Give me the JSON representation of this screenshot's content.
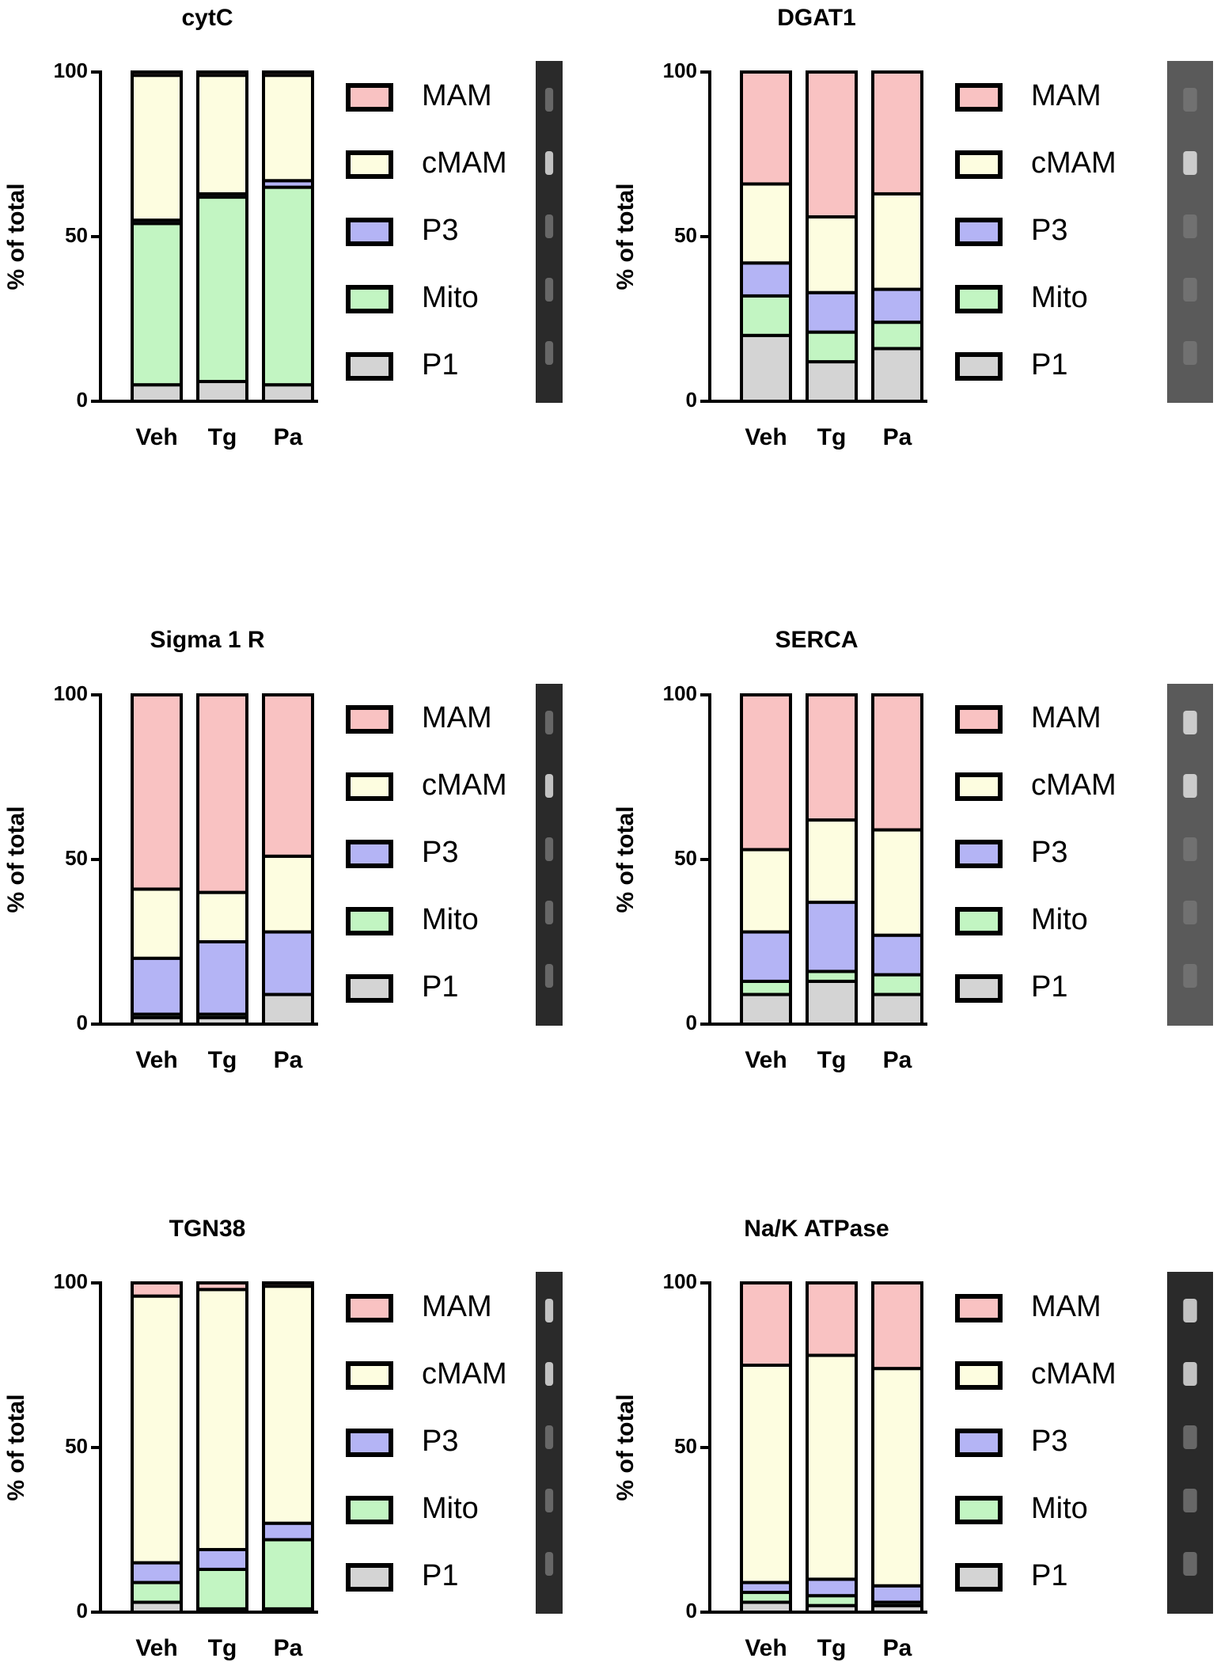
{
  "chart_data": [
    {
      "type": "bar",
      "stacked": true,
      "title": "cytC",
      "ylabel": "% of total",
      "categories": [
        "Veh",
        "Tg",
        "Pa"
      ],
      "ylim": [
        0,
        100
      ],
      "yticks": [
        0,
        50,
        100
      ],
      "series": [
        {
          "name": "P1",
          "color": "#d4d4d4",
          "values": [
            5,
            6,
            5
          ]
        },
        {
          "name": "Mito",
          "color": "#c2f5c2",
          "values": [
            49,
            56,
            60
          ]
        },
        {
          "name": "P3",
          "color": "#b4b4f5",
          "values": [
            1,
            1,
            2
          ]
        },
        {
          "name": "cMAM",
          "color": "#fdfde0",
          "values": [
            44,
            36,
            32
          ]
        },
        {
          "name": "MAM",
          "color": "#f9c2c2",
          "values": [
            1,
            1,
            1
          ]
        }
      ]
    },
    {
      "type": "bar",
      "stacked": true,
      "title": "DGAT1",
      "ylabel": "% of total",
      "categories": [
        "Veh",
        "Tg",
        "Pa"
      ],
      "ylim": [
        0,
        100
      ],
      "yticks": [
        0,
        50,
        100
      ],
      "series": [
        {
          "name": "P1",
          "color": "#d4d4d4",
          "values": [
            20,
            12,
            16
          ]
        },
        {
          "name": "Mito",
          "color": "#c2f5c2",
          "values": [
            12,
            9,
            8
          ]
        },
        {
          "name": "P3",
          "color": "#b4b4f5",
          "values": [
            10,
            12,
            10
          ]
        },
        {
          "name": "cMAM",
          "color": "#fdfde0",
          "values": [
            24,
            23,
            29
          ]
        },
        {
          "name": "MAM",
          "color": "#f9c2c2",
          "values": [
            34,
            44,
            37
          ]
        }
      ]
    },
    {
      "type": "bar",
      "stacked": true,
      "title": "Sigma 1 R",
      "ylabel": "% of total",
      "categories": [
        "Veh",
        "Tg",
        "Pa"
      ],
      "ylim": [
        0,
        100
      ],
      "yticks": [
        0,
        50,
        100
      ],
      "series": [
        {
          "name": "P1",
          "color": "#d4d4d4",
          "values": [
            2,
            2,
            9
          ]
        },
        {
          "name": "Mito",
          "color": "#c2f5c2",
          "values": [
            1,
            1,
            0
          ]
        },
        {
          "name": "P3",
          "color": "#b4b4f5",
          "values": [
            17,
            22,
            19
          ]
        },
        {
          "name": "cMAM",
          "color": "#fdfde0",
          "values": [
            21,
            15,
            23
          ]
        },
        {
          "name": "MAM",
          "color": "#f9c2c2",
          "values": [
            59,
            60,
            49
          ]
        }
      ]
    },
    {
      "type": "bar",
      "stacked": true,
      "title": "SERCA",
      "ylabel": "% of total",
      "categories": [
        "Veh",
        "Tg",
        "Pa"
      ],
      "ylim": [
        0,
        100
      ],
      "yticks": [
        0,
        50,
        100
      ],
      "series": [
        {
          "name": "P1",
          "color": "#d4d4d4",
          "values": [
            9,
            13,
            9
          ]
        },
        {
          "name": "Mito",
          "color": "#c2f5c2",
          "values": [
            4,
            3,
            6
          ]
        },
        {
          "name": "P3",
          "color": "#b4b4f5",
          "values": [
            15,
            21,
            12
          ]
        },
        {
          "name": "cMAM",
          "color": "#fdfde0",
          "values": [
            25,
            25,
            32
          ]
        },
        {
          "name": "MAM",
          "color": "#f9c2c2",
          "values": [
            47,
            38,
            41
          ]
        }
      ]
    },
    {
      "type": "bar",
      "stacked": true,
      "title": "TGN38",
      "ylabel": "% of total",
      "categories": [
        "Veh",
        "Tg",
        "Pa"
      ],
      "ylim": [
        0,
        100
      ],
      "yticks": [
        0,
        50,
        100
      ],
      "series": [
        {
          "name": "P1",
          "color": "#d4d4d4",
          "values": [
            3,
            1,
            1
          ]
        },
        {
          "name": "Mito",
          "color": "#c2f5c2",
          "values": [
            6,
            12,
            21
          ]
        },
        {
          "name": "P3",
          "color": "#b4b4f5",
          "values": [
            6,
            6,
            5
          ]
        },
        {
          "name": "cMAM",
          "color": "#fdfde0",
          "values": [
            81,
            79,
            72
          ]
        },
        {
          "name": "MAM",
          "color": "#f9c2c2",
          "values": [
            4,
            2,
            1
          ]
        }
      ]
    },
    {
      "type": "bar",
      "stacked": true,
      "title": "Na/K ATPase",
      "ylabel": "% of total",
      "categories": [
        "Veh",
        "Tg",
        "Pa"
      ],
      "ylim": [
        0,
        100
      ],
      "yticks": [
        0,
        50,
        100
      ],
      "series": [
        {
          "name": "P1",
          "color": "#d4d4d4",
          "values": [
            3,
            2,
            2
          ]
        },
        {
          "name": "Mito",
          "color": "#c2f5c2",
          "values": [
            3,
            3,
            1
          ]
        },
        {
          "name": "P3",
          "color": "#b4b4f5",
          "values": [
            3,
            5,
            5
          ]
        },
        {
          "name": "cMAM",
          "color": "#fdfde0",
          "values": [
            66,
            68,
            66
          ]
        },
        {
          "name": "MAM",
          "color": "#f9c2c2",
          "values": [
            25,
            22,
            26
          ]
        }
      ]
    }
  ]
}
